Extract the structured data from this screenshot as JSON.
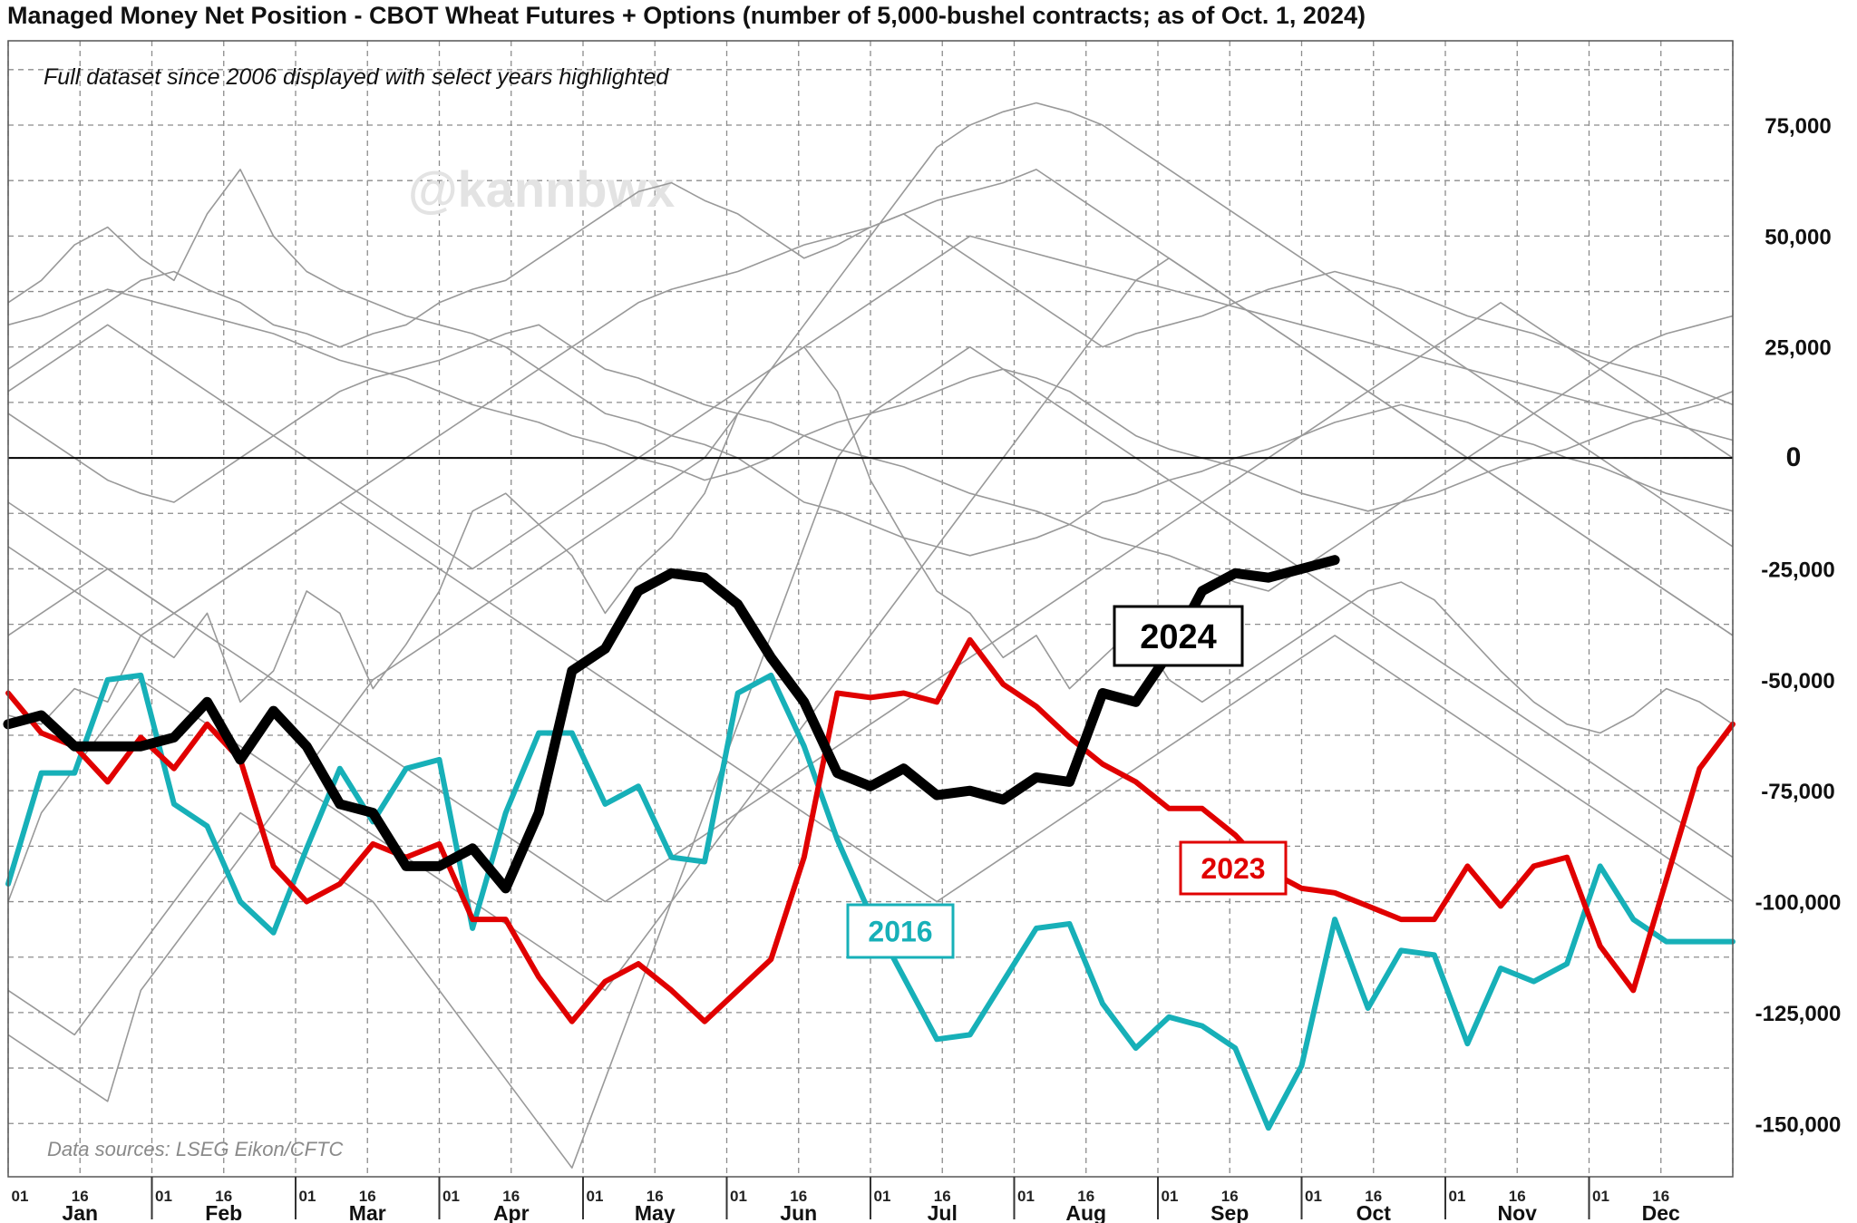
{
  "title": "Managed Money Net Position - CBOT Wheat Futures + Options (number of 5,000-bushel contracts; as of Oct. 1, 2024)",
  "subtitle": "Full dataset since 2006 displayed with select years highlighted",
  "watermark": "@kannbwx",
  "source": "Data sources: LSEG Eikon/CFTC",
  "colors": {
    "y2024": "#000000",
    "y2023": "#e00000",
    "y2016": "#17b0b8",
    "background_years": "#999999"
  },
  "chart_data": {
    "type": "line",
    "x_unit": "week of year",
    "xlim": [
      0,
      52
    ],
    "ylim": [
      -162000,
      94000
    ],
    "y_ticks": [
      {
        "value": 75000,
        "label": "75,000"
      },
      {
        "value": 50000,
        "label": "50,000"
      },
      {
        "value": 25000,
        "label": "25,000"
      },
      {
        "value": 0,
        "label": "0"
      },
      {
        "value": -25000,
        "label": "-25,000"
      },
      {
        "value": -50000,
        "label": "-50,000"
      },
      {
        "value": -75000,
        "label": "-75,000"
      },
      {
        "value": -100000,
        "label": "-100,000"
      },
      {
        "value": -125000,
        "label": "-125,000"
      },
      {
        "value": -150000,
        "label": "-150,000"
      }
    ],
    "months": [
      "Jan",
      "Feb",
      "Mar",
      "Apr",
      "May",
      "Jun",
      "Jul",
      "Aug",
      "Sep",
      "Oct",
      "Nov",
      "Dec"
    ],
    "day_labels": [
      "01",
      "16"
    ],
    "grid": true,
    "highlighted": [
      {
        "name": "2024",
        "color": "#000000",
        "x": [
          0,
          1,
          2,
          3,
          4,
          5,
          6,
          7,
          8,
          9,
          10,
          11,
          12,
          13,
          14,
          15,
          16,
          17,
          18,
          19,
          20,
          21,
          22,
          23,
          24,
          25,
          26,
          27,
          28,
          29,
          30,
          31,
          32,
          33,
          34,
          35,
          36,
          37,
          38,
          39,
          40
        ],
        "values": [
          -60000,
          -58000,
          -65000,
          -65000,
          -65000,
          -63000,
          -55000,
          -68000,
          -57000,
          -65000,
          -78000,
          -80000,
          -92000,
          -92000,
          -88000,
          -97000,
          -80000,
          -48000,
          -43000,
          -30000,
          -26000,
          -27000,
          -33000,
          -45000,
          -55000,
          -71000,
          -74000,
          -70000,
          -76000,
          -75000,
          -77000,
          -72000,
          -73000,
          -53000,
          -55000,
          -44000,
          -30000,
          -26000,
          -27000,
          -25000,
          -23000
        ]
      },
      {
        "name": "2023",
        "color": "#e00000",
        "x": [
          0,
          1,
          2,
          3,
          4,
          5,
          6,
          7,
          8,
          9,
          10,
          11,
          12,
          13,
          14,
          15,
          16,
          17,
          18,
          19,
          20,
          21,
          22,
          23,
          24,
          25,
          26,
          27,
          28,
          29,
          30,
          31,
          32,
          33,
          34,
          35,
          36,
          37,
          38,
          39,
          40,
          41,
          42,
          43,
          44,
          45,
          46,
          47,
          48,
          49,
          50,
          51,
          52
        ],
        "values": [
          -53000,
          -62000,
          -65000,
          -73000,
          -63000,
          -70000,
          -60000,
          -68000,
          -92000,
          -100000,
          -96000,
          -87000,
          -90000,
          -87000,
          -104000,
          -104000,
          -117000,
          -127000,
          -118000,
          -114000,
          -120000,
          -127000,
          -120000,
          -113000,
          -90000,
          -53000,
          -54000,
          -53000,
          -55000,
          -41000,
          -51000,
          -56000,
          -63000,
          -69000,
          -73000,
          -79000,
          -79000,
          -85000,
          -93000,
          -97000,
          -98000,
          -101000,
          -104000,
          -104000,
          -92000,
          -101000,
          -92000,
          -90000,
          -110000,
          -120000,
          -95000,
          -70000,
          -60000
        ]
      },
      {
        "name": "2016",
        "color": "#17b0b8",
        "x": [
          0,
          1,
          2,
          3,
          4,
          5,
          6,
          7,
          8,
          9,
          10,
          11,
          12,
          13,
          14,
          15,
          16,
          17,
          18,
          19,
          20,
          21,
          22,
          23,
          24,
          25,
          26,
          27,
          28,
          29,
          30,
          31,
          32,
          33,
          34,
          35,
          36,
          37,
          38,
          39,
          40,
          41,
          42,
          43,
          44,
          45,
          46,
          47,
          48,
          49,
          50,
          51,
          52
        ],
        "values": [
          -96000,
          -71000,
          -71000,
          -50000,
          -49000,
          -78000,
          -83000,
          -100000,
          -107000,
          -88000,
          -70000,
          -82000,
          -70000,
          -68000,
          -106000,
          -80000,
          -62000,
          -62000,
          -78000,
          -74000,
          -90000,
          -91000,
          -53000,
          -49000,
          -65000,
          -86000,
          -103000,
          -117000,
          -131000,
          -130000,
          -118000,
          -106000,
          -105000,
          -123000,
          -133000,
          -126000,
          -128000,
          -133000,
          -151000,
          -137000,
          -104000,
          -124000,
          -111000,
          -112000,
          -132000,
          -115000,
          -118000,
          -114000,
          -92000,
          -104000,
          -109000,
          -109000,
          -109000
        ]
      }
    ],
    "background_years": [
      [
        -58000,
        -60000,
        -52000,
        -55000,
        -40000,
        -45000,
        -35000,
        -55000,
        -48000,
        -30000,
        -35000,
        -52000,
        -42000,
        -30000,
        -12000,
        -8000,
        -15000,
        -22000,
        -35000,
        -25000,
        -18000,
        -8000,
        10000,
        20000,
        25000,
        15000,
        -5000,
        -18000,
        -30000,
        -35000,
        -45000,
        -40000,
        -52000,
        -45000,
        -38000,
        -50000,
        -55000,
        -50000,
        -45000,
        -40000,
        -35000,
        -30000,
        -28000,
        -32000,
        -40000,
        -48000,
        -55000,
        -60000,
        -62000,
        -58000,
        -52000,
        -55000,
        -60000
      ],
      [
        30000,
        32000,
        35000,
        38000,
        36000,
        34000,
        32000,
        30000,
        28000,
        25000,
        22000,
        20000,
        18000,
        15000,
        12000,
        10000,
        8000,
        5000,
        3000,
        0,
        -2000,
        -5000,
        -3000,
        0,
        5000,
        8000,
        10000,
        12000,
        15000,
        18000,
        20000,
        18000,
        15000,
        10000,
        5000,
        2000,
        0,
        -2000,
        -5000,
        -8000,
        -10000,
        -12000,
        -10000,
        -8000,
        -5000,
        -2000,
        0,
        2000,
        5000,
        8000,
        10000,
        12000,
        15000
      ],
      [
        20000,
        25000,
        30000,
        35000,
        40000,
        42000,
        38000,
        35000,
        30000,
        28000,
        25000,
        28000,
        30000,
        35000,
        38000,
        40000,
        45000,
        50000,
        55000,
        60000,
        62000,
        58000,
        55000,
        50000,
        45000,
        48000,
        52000,
        55000,
        50000,
        45000,
        40000,
        35000,
        30000,
        25000,
        28000,
        30000,
        32000,
        35000,
        38000,
        40000,
        42000,
        40000,
        38000,
        35000,
        32000,
        30000,
        28000,
        25000,
        22000,
        20000,
        18000,
        15000,
        12000
      ],
      [
        35000,
        40000,
        48000,
        52000,
        45000,
        40000,
        55000,
        65000,
        50000,
        42000,
        38000,
        35000,
        32000,
        30000,
        28000,
        25000,
        20000,
        15000,
        10000,
        8000,
        5000,
        3000,
        0,
        -5000,
        -10000,
        -12000,
        -15000,
        -18000,
        -20000,
        -22000,
        -20000,
        -18000,
        -15000,
        -10000,
        -8000,
        -5000,
        -3000,
        0,
        2000,
        5000,
        8000,
        10000,
        12000,
        10000,
        8000,
        5000,
        3000,
        0,
        -2000,
        -5000,
        -8000,
        -10000,
        -12000
      ],
      [
        10000,
        5000,
        0,
        -5000,
        -8000,
        -10000,
        -5000,
        0,
        5000,
        10000,
        15000,
        18000,
        20000,
        22000,
        25000,
        28000,
        30000,
        25000,
        20000,
        18000,
        15000,
        12000,
        10000,
        8000,
        5000,
        2000,
        0,
        -2000,
        -5000,
        -8000,
        -10000,
        -12000,
        -15000,
        -18000,
        -20000,
        -22000,
        -25000,
        -28000,
        -30000,
        -25000,
        -20000,
        -15000,
        -10000,
        -5000,
        0,
        5000,
        10000,
        15000,
        20000,
        25000,
        28000,
        30000,
        32000
      ],
      [
        -10000,
        -15000,
        -20000,
        -25000,
        -30000,
        -35000,
        -30000,
        -25000,
        -20000,
        -15000,
        -10000,
        -5000,
        0,
        5000,
        10000,
        15000,
        20000,
        25000,
        30000,
        35000,
        38000,
        40000,
        42000,
        45000,
        48000,
        50000,
        52000,
        55000,
        58000,
        60000,
        62000,
        65000,
        60000,
        55000,
        50000,
        45000,
        40000,
        35000,
        30000,
        25000,
        20000,
        15000,
        10000,
        5000,
        0,
        -5000,
        -10000,
        -15000,
        -20000,
        -25000,
        -30000,
        -35000,
        -40000
      ],
      [
        -100000,
        -80000,
        -70000,
        -60000,
        -50000,
        -55000,
        -60000,
        -65000,
        -70000,
        -75000,
        -80000,
        -85000,
        -90000,
        -95000,
        -100000,
        -105000,
        -110000,
        -115000,
        -120000,
        -110000,
        -100000,
        -90000,
        -80000,
        -70000,
        -60000,
        -50000,
        -40000,
        -30000,
        -20000,
        -10000,
        0,
        10000,
        20000,
        30000,
        40000,
        45000,
        40000,
        35000,
        30000,
        25000,
        20000,
        15000,
        10000,
        5000,
        0,
        -5000,
        -10000,
        -15000,
        -20000,
        -25000,
        -30000,
        -35000,
        -40000
      ],
      [
        -130000,
        -135000,
        -140000,
        -145000,
        -120000,
        -110000,
        -100000,
        -90000,
        -80000,
        -70000,
        -60000,
        -50000,
        -45000,
        -40000,
        -35000,
        -30000,
        -25000,
        -20000,
        -15000,
        -10000,
        -5000,
        0,
        10000,
        20000,
        30000,
        40000,
        50000,
        60000,
        70000,
        75000,
        78000,
        80000,
        78000,
        75000,
        70000,
        65000,
        60000,
        55000,
        50000,
        45000,
        40000,
        35000,
        30000,
        25000,
        20000,
        15000,
        10000,
        5000,
        0,
        -5000,
        -10000,
        -15000,
        -20000
      ],
      [
        -120000,
        -125000,
        -130000,
        -120000,
        -110000,
        -100000,
        -90000,
        -80000,
        -85000,
        -90000,
        -95000,
        -100000,
        -110000,
        -120000,
        -130000,
        -140000,
        -150000,
        -160000,
        -140000,
        -120000,
        -100000,
        -80000,
        -60000,
        -40000,
        -20000,
        0,
        10000,
        15000,
        20000,
        25000,
        20000,
        15000,
        10000,
        5000,
        0,
        -5000,
        -10000,
        -15000,
        -20000,
        -25000,
        -30000,
        -35000,
        -40000,
        -45000,
        -50000,
        -55000,
        -60000,
        -65000,
        -70000,
        -75000,
        -80000,
        -85000,
        -90000
      ],
      [
        -40000,
        -35000,
        -30000,
        -25000,
        -30000,
        -35000,
        -40000,
        -45000,
        -50000,
        -55000,
        -60000,
        -65000,
        -70000,
        -75000,
        -80000,
        -85000,
        -90000,
        -95000,
        -100000,
        -95000,
        -90000,
        -85000,
        -80000,
        -75000,
        -70000,
        -65000,
        -60000,
        -55000,
        -50000,
        -45000,
        -40000,
        -35000,
        -30000,
        -25000,
        -20000,
        -15000,
        -10000,
        -5000,
        0,
        5000,
        10000,
        15000,
        20000,
        25000,
        30000,
        35000,
        30000,
        25000,
        20000,
        15000,
        10000,
        5000,
        0
      ],
      [
        -20000,
        -25000,
        -30000,
        -35000,
        -40000,
        -35000,
        -30000,
        -25000,
        -20000,
        -15000,
        -10000,
        -15000,
        -20000,
        -25000,
        -30000,
        -35000,
        -40000,
        -45000,
        -50000,
        -55000,
        -60000,
        -65000,
        -70000,
        -75000,
        -80000,
        -85000,
        -90000,
        -95000,
        -100000,
        -95000,
        -90000,
        -85000,
        -80000,
        -75000,
        -70000,
        -65000,
        -60000,
        -55000,
        -50000,
        -45000,
        -40000,
        -45000,
        -50000,
        -55000,
        -60000,
        -65000,
        -70000,
        -75000,
        -80000,
        -85000,
        -90000,
        -95000,
        -100000
      ],
      [
        15000,
        20000,
        25000,
        30000,
        25000,
        20000,
        15000,
        10000,
        5000,
        0,
        -5000,
        -10000,
        -15000,
        -20000,
        -25000,
        -20000,
        -15000,
        -10000,
        -5000,
        0,
        5000,
        10000,
        15000,
        20000,
        25000,
        30000,
        35000,
        40000,
        45000,
        50000,
        48000,
        46000,
        44000,
        42000,
        40000,
        38000,
        36000,
        34000,
        32000,
        30000,
        28000,
        26000,
        24000,
        22000,
        20000,
        18000,
        16000,
        14000,
        12000,
        10000,
        8000,
        6000,
        4000
      ]
    ],
    "labels": [
      {
        "series": "2024",
        "text": "2024"
      },
      {
        "series": "2023",
        "text": "2023"
      },
      {
        "series": "2016",
        "text": "2016"
      }
    ]
  }
}
